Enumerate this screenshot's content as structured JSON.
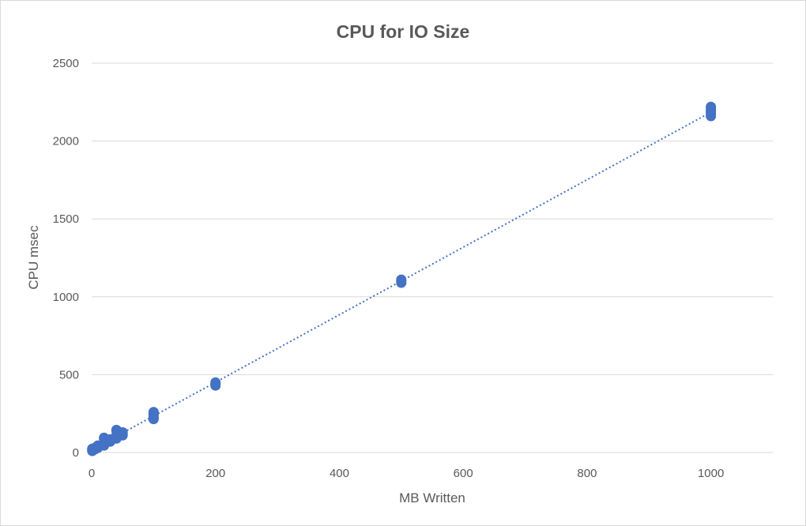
{
  "chart_data": {
    "type": "scatter",
    "title": "CPU for IO Size",
    "xlabel": "MB Written",
    "ylabel": "CPU msec",
    "xlim": [
      0,
      1100
    ],
    "ylim": [
      0,
      2500
    ],
    "xticks": [
      0,
      200,
      400,
      600,
      800,
      1000
    ],
    "yticks": [
      0,
      500,
      1000,
      1500,
      2000,
      2500
    ],
    "grid": "horizontal",
    "legend": "none",
    "color": "#4472c4",
    "trendline": {
      "type": "linear",
      "style": "dotted",
      "x": [
        1,
        1000
      ],
      "y": [
        20,
        2185
      ]
    },
    "points": [
      {
        "x": 1,
        "y": 10
      },
      {
        "x": 1,
        "y": 15
      },
      {
        "x": 1,
        "y": 20
      },
      {
        "x": 1,
        "y": 25
      },
      {
        "x": 5,
        "y": 20
      },
      {
        "x": 5,
        "y": 30
      },
      {
        "x": 10,
        "y": 30
      },
      {
        "x": 10,
        "y": 40
      },
      {
        "x": 10,
        "y": 45
      },
      {
        "x": 20,
        "y": 45
      },
      {
        "x": 20,
        "y": 60
      },
      {
        "x": 20,
        "y": 90
      },
      {
        "x": 20,
        "y": 95
      },
      {
        "x": 30,
        "y": 70
      },
      {
        "x": 30,
        "y": 80
      },
      {
        "x": 30,
        "y": 85
      },
      {
        "x": 40,
        "y": 90
      },
      {
        "x": 40,
        "y": 110
      },
      {
        "x": 40,
        "y": 140
      },
      {
        "x": 40,
        "y": 145
      },
      {
        "x": 50,
        "y": 110
      },
      {
        "x": 50,
        "y": 120
      },
      {
        "x": 50,
        "y": 130
      },
      {
        "x": 100,
        "y": 215
      },
      {
        "x": 100,
        "y": 225
      },
      {
        "x": 100,
        "y": 240
      },
      {
        "x": 100,
        "y": 250
      },
      {
        "x": 100,
        "y": 260
      },
      {
        "x": 200,
        "y": 430
      },
      {
        "x": 200,
        "y": 440
      },
      {
        "x": 200,
        "y": 450
      },
      {
        "x": 500,
        "y": 1090
      },
      {
        "x": 500,
        "y": 1100
      },
      {
        "x": 500,
        "y": 1110
      },
      {
        "x": 1000,
        "y": 2160
      },
      {
        "x": 1000,
        "y": 2175
      },
      {
        "x": 1000,
        "y": 2190
      },
      {
        "x": 1000,
        "y": 2205
      },
      {
        "x": 1000,
        "y": 2220
      }
    ]
  }
}
